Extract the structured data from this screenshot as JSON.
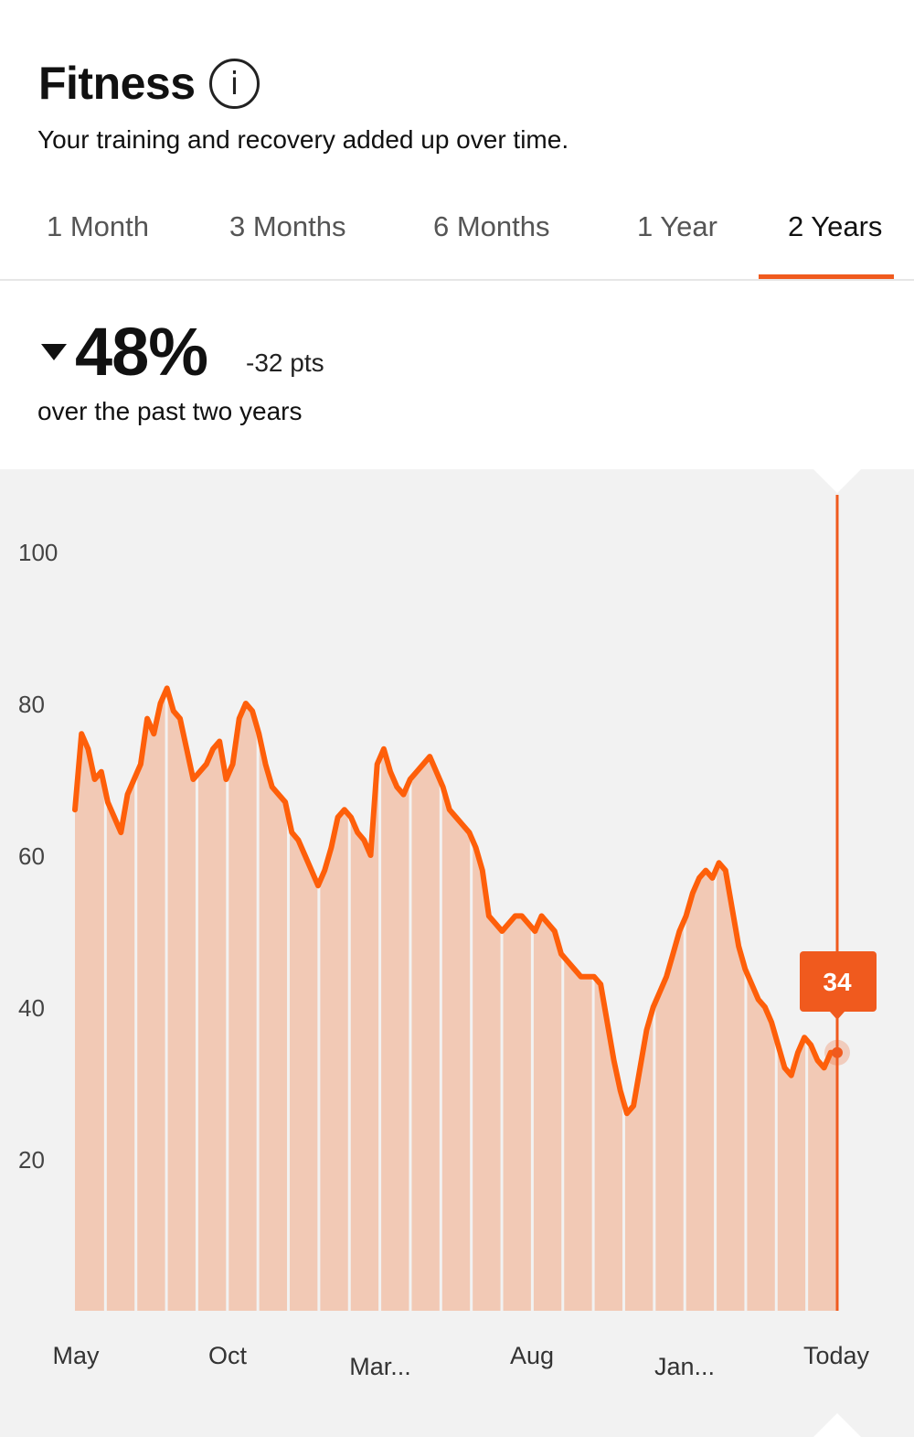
{
  "header": {
    "title": "Fitness",
    "info_icon": "info-icon",
    "subtitle": "Your training and recovery added up over time."
  },
  "tabs": [
    {
      "label": "1 Month",
      "active": false
    },
    {
      "label": "3 Months",
      "active": false
    },
    {
      "label": "6 Months",
      "active": false
    },
    {
      "label": "1 Year",
      "active": false
    },
    {
      "label": "2 Years",
      "active": true
    }
  ],
  "summary": {
    "direction_icon": "triangle-down-icon",
    "percent": "48%",
    "delta": "-32 pts",
    "period": "over the past two years"
  },
  "colors": {
    "accent": "#f05a1e",
    "line": "#fe5f0a",
    "fill": "#f2c9b5",
    "chart_bg": "#f2f2f2"
  },
  "chart_data": {
    "type": "area",
    "x_labels": [
      "May",
      "Oct",
      "Mar...",
      "Aug",
      "Jan...",
      "Today"
    ],
    "y_ticks": [
      100,
      80,
      60,
      40,
      20
    ],
    "ylim": [
      0,
      110
    ],
    "series": [
      {
        "values": [
          66,
          76,
          74,
          70,
          71,
          67,
          65,
          63,
          68,
          70,
          72,
          78,
          76,
          80,
          82,
          79,
          78,
          74,
          70,
          71,
          72,
          74,
          75,
          70,
          72,
          78,
          80,
          79,
          76,
          72,
          69,
          68,
          67,
          63,
          62,
          60,
          58,
          56,
          58,
          61,
          65,
          66,
          65,
          63,
          62,
          60,
          72,
          74,
          71,
          69,
          68,
          70,
          71,
          72,
          73,
          71,
          69,
          66,
          65,
          64,
          63,
          61,
          58,
          52,
          51,
          50,
          51,
          52,
          52,
          51,
          50,
          52,
          51,
          50,
          47,
          46,
          45,
          44,
          44,
          44,
          43,
          38,
          33,
          29,
          26,
          27,
          32,
          37,
          40,
          42,
          44,
          47,
          50,
          52,
          55,
          57,
          58,
          57,
          59,
          58,
          53,
          48,
          45,
          43,
          41,
          40,
          38,
          35,
          32,
          31,
          34,
          36,
          35,
          33,
          32,
          34,
          34
        ]
      }
    ],
    "tooltip": {
      "value": "34",
      "label": "Today"
    }
  }
}
